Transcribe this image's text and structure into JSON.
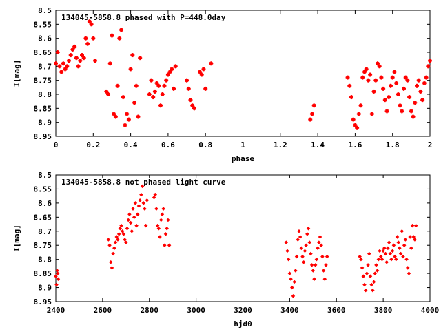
{
  "chart_data": [
    {
      "type": "scatter",
      "title": "134045-5858.8 phased with P=448.0day",
      "xlabel": "phase",
      "ylabel": "I[mag]",
      "xlim": [
        0,
        2
      ],
      "ylim": [
        8.5,
        8.95
      ],
      "y_inverted": true,
      "x_ticks": [
        "0",
        "0.2",
        "0.4",
        "0.6",
        "0.8",
        "1",
        "1.2",
        "1.4",
        "1.6",
        "1.8",
        "2"
      ],
      "y_ticks": [
        "8.5",
        "8.55",
        "8.6",
        "8.65",
        "8.7",
        "8.75",
        "8.8",
        "8.85",
        "8.9",
        "8.95"
      ],
      "marker": "cross",
      "color": "#ff0000",
      "series": [
        {
          "x": [
            0.0,
            0.01,
            0.02,
            0.03,
            0.04,
            0.05,
            0.06,
            0.07,
            0.08,
            0.09,
            0.1,
            0.11,
            0.12,
            0.13,
            0.14,
            0.15,
            0.16,
            0.17,
            0.18,
            0.19,
            0.2,
            0.21,
            0.27,
            0.28,
            0.29,
            0.3,
            0.31,
            0.32,
            0.33,
            0.34,
            0.35,
            0.36,
            0.37,
            0.38,
            0.39,
            0.4,
            0.41,
            0.42,
            0.43,
            0.44,
            0.45,
            0.5,
            0.51,
            0.52,
            0.53,
            0.54,
            0.55,
            0.56,
            0.57,
            0.58,
            0.59,
            0.6,
            0.61,
            0.62,
            0.63,
            0.64,
            0.7,
            0.71,
            0.72,
            0.73,
            0.74,
            0.77,
            0.78,
            0.79,
            0.8,
            0.83,
            1.36,
            1.37,
            1.38,
            1.56,
            1.57,
            1.58,
            1.59,
            1.6,
            1.61,
            1.62,
            1.63,
            1.64,
            1.65,
            1.66,
            1.67,
            1.68,
            1.69,
            1.7,
            1.71,
            1.72,
            1.73,
            1.74,
            1.75,
            1.76,
            1.77,
            1.78,
            1.79,
            1.8,
            1.81,
            1.82,
            1.83,
            1.84,
            1.85,
            1.86,
            1.87,
            1.88,
            1.89,
            1.9,
            1.91,
            1.92,
            1.93,
            1.94,
            1.95,
            1.96,
            1.97,
            1.98,
            1.99,
            2.0
          ],
          "y": [
            8.69,
            8.65,
            8.7,
            8.72,
            8.69,
            8.71,
            8.7,
            8.68,
            8.66,
            8.64,
            8.63,
            8.67,
            8.7,
            8.68,
            8.66,
            8.67,
            8.6,
            8.62,
            8.54,
            8.55,
            8.6,
            8.68,
            8.79,
            8.8,
            8.69,
            8.59,
            8.87,
            8.88,
            8.77,
            8.6,
            8.57,
            8.81,
            8.91,
            8.87,
            8.89,
            8.71,
            8.66,
            8.83,
            8.77,
            8.88,
            8.67,
            8.8,
            8.75,
            8.81,
            8.79,
            8.76,
            8.77,
            8.84,
            8.8,
            8.77,
            8.75,
            8.73,
            8.72,
            8.71,
            8.78,
            8.7,
            8.75,
            8.78,
            8.82,
            8.84,
            8.85,
            8.72,
            8.73,
            8.71,
            8.78,
            8.69,
            8.89,
            8.87,
            8.84,
            8.74,
            8.77,
            8.81,
            8.89,
            8.91,
            8.92,
            8.87,
            8.84,
            8.74,
            8.72,
            8.71,
            8.75,
            8.73,
            8.87,
            8.79,
            8.75,
            8.69,
            8.7,
            8.74,
            8.78,
            8.82,
            8.86,
            8.81,
            8.77,
            8.74,
            8.72,
            8.76,
            8.8,
            8.84,
            8.86,
            8.78,
            8.74,
            8.75,
            8.81,
            8.86,
            8.88,
            8.83,
            8.77,
            8.75,
            8.79,
            8.82,
            8.76,
            8.74,
            8.7,
            8.68
          ]
        }
      ]
    },
    {
      "type": "scatter",
      "title": "134045-5858.8 not phased light curve",
      "xlabel": "hjd0",
      "ylabel": "I[mag]",
      "xlim": [
        2400,
        4000
      ],
      "ylim": [
        8.5,
        8.95
      ],
      "y_inverted": true,
      "x_ticks": [
        "2400",
        "2600",
        "2800",
        "3000",
        "3200",
        "3400",
        "3600",
        "3800",
        "4000"
      ],
      "y_ticks": [
        "8.5",
        "8.55",
        "8.6",
        "8.65",
        "8.7",
        "8.75",
        "8.8",
        "8.85",
        "8.9",
        "8.95"
      ],
      "marker": "diamond",
      "color": "#ff0000",
      "series": [
        {
          "x": [
            2400,
            2403,
            2406,
            2408,
            2410,
            2625,
            2630,
            2635,
            2640,
            2645,
            2650,
            2655,
            2660,
            2665,
            2670,
            2675,
            2680,
            2685,
            2690,
            2695,
            2700,
            2705,
            2710,
            2715,
            2720,
            2725,
            2730,
            2735,
            2740,
            2745,
            2750,
            2755,
            2760,
            2765,
            2770,
            2775,
            2780,
            2785,
            2790,
            2820,
            2825,
            2830,
            2835,
            2840,
            2845,
            2850,
            2855,
            2860,
            2865,
            2870,
            2875,
            2880,
            2885,
            3385,
            3390,
            3395,
            3400,
            3405,
            3410,
            3415,
            3420,
            3425,
            3430,
            3435,
            3440,
            3445,
            3450,
            3455,
            3460,
            3465,
            3470,
            3475,
            3480,
            3485,
            3490,
            3495,
            3500,
            3505,
            3510,
            3515,
            3520,
            3525,
            3530,
            3535,
            3540,
            3545,
            3550,
            3555,
            3560,
            3700,
            3705,
            3710,
            3715,
            3720,
            3725,
            3730,
            3735,
            3740,
            3745,
            3750,
            3755,
            3760,
            3765,
            3770,
            3775,
            3780,
            3785,
            3790,
            3795,
            3800,
            3805,
            3810,
            3815,
            3820,
            3825,
            3830,
            3835,
            3840,
            3845,
            3850,
            3855,
            3860,
            3865,
            3870,
            3875,
            3880,
            3885,
            3890,
            3895,
            3900,
            3905,
            3910,
            3915,
            3920,
            3925,
            3930,
            3935,
            3940
          ],
          "y": [
            8.86,
            8.89,
            8.84,
            8.85,
            8.87,
            8.73,
            8.75,
            8.81,
            8.83,
            8.78,
            8.76,
            8.74,
            8.72,
            8.73,
            8.71,
            8.69,
            8.68,
            8.7,
            8.71,
            8.73,
            8.74,
            8.69,
            8.66,
            8.64,
            8.67,
            8.7,
            8.62,
            8.65,
            8.6,
            8.68,
            8.64,
            8.61,
            8.59,
            8.57,
            8.54,
            8.6,
            8.62,
            8.68,
            8.59,
            8.58,
            8.57,
            8.62,
            8.68,
            8.69,
            8.72,
            8.66,
            8.64,
            8.62,
            8.75,
            8.71,
            8.69,
            8.66,
            8.75,
            8.74,
            8.77,
            8.8,
            8.85,
            8.87,
            8.9,
            8.93,
            8.88,
            8.84,
            8.79,
            8.73,
            8.7,
            8.72,
            8.76,
            8.79,
            8.81,
            8.77,
            8.75,
            8.71,
            8.69,
            8.74,
            8.78,
            8.82,
            8.84,
            8.87,
            8.82,
            8.8,
            8.76,
            8.74,
            8.72,
            8.75,
            8.79,
            8.84,
            8.87,
            8.82,
            8.79,
            8.79,
            8.8,
            8.83,
            8.86,
            8.89,
            8.91,
            8.85,
            8.82,
            8.78,
            8.86,
            8.89,
            8.91,
            8.88,
            8.85,
            8.82,
            8.84,
            8.8,
            8.77,
            8.79,
            8.8,
            8.77,
            8.76,
            8.78,
            8.81,
            8.76,
            8.74,
            8.78,
            8.8,
            8.77,
            8.75,
            8.79,
            8.8,
            8.72,
            8.74,
            8.76,
            8.78,
            8.7,
            8.79,
            8.75,
            8.73,
            8.8,
            8.83,
            8.85,
            8.72,
            8.76,
            8.68,
            8.72,
            8.73,
            8.68
          ]
        }
      ]
    }
  ]
}
